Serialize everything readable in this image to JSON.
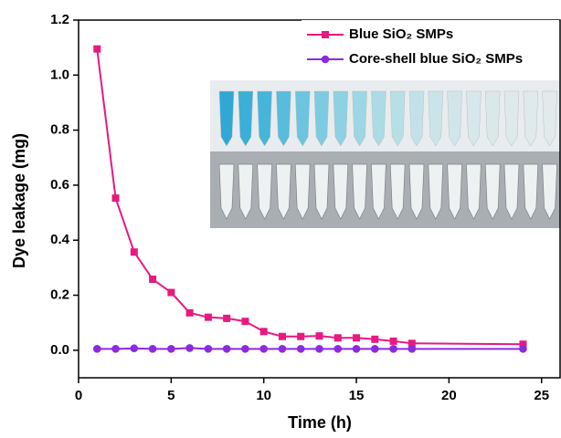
{
  "chart_data": {
    "type": "line",
    "x_label": "Time (h)",
    "y_label": "Dye leakage (mg)",
    "xlim": [
      0,
      26
    ],
    "xticks": [
      0,
      5,
      10,
      15,
      20,
      25
    ],
    "ylim": [
      -0.1,
      1.2
    ],
    "yticks": [
      {
        "value": 0,
        "label": "0.0"
      },
      {
        "value": 0.2,
        "label": "0.2"
      },
      {
        "value": 0.4,
        "label": "0.4"
      },
      {
        "value": 0.6,
        "label": "0.6"
      },
      {
        "value": 0.8,
        "label": "0.8"
      },
      {
        "value": 1.0,
        "label": "1.0"
      },
      {
        "value": 1.2,
        "label": "1.2"
      }
    ],
    "legend": "upper right",
    "series": [
      {
        "name": "Blue SiO₂ SMPs",
        "color": "#e8197f",
        "marker": "square",
        "x": [
          1,
          2,
          3,
          4,
          5,
          6,
          7,
          8,
          9,
          10,
          11,
          12,
          13,
          14,
          15,
          16,
          17,
          18,
          24
        ],
        "values": [
          1.095,
          0.553,
          0.357,
          0.258,
          0.21,
          0.136,
          0.12,
          0.116,
          0.105,
          0.068,
          0.05,
          0.05,
          0.052,
          0.045,
          0.045,
          0.04,
          0.033,
          0.025,
          0.022
        ]
      },
      {
        "name": "Core-shell blue SiO₂ SMPs",
        "color": "#8a2be2",
        "marker": "circle",
        "x": [
          1,
          2,
          3,
          4,
          5,
          6,
          7,
          8,
          9,
          10,
          11,
          12,
          13,
          14,
          15,
          16,
          17,
          18,
          24
        ],
        "values": [
          0.005,
          0.005,
          0.007,
          0.005,
          0.005,
          0.008,
          0.005,
          0.005,
          0.005,
          0.005,
          0.005,
          0.005,
          0.005,
          0.005,
          0.005,
          0.005,
          0.005,
          0.005,
          0.005
        ]
      }
    ]
  }
}
